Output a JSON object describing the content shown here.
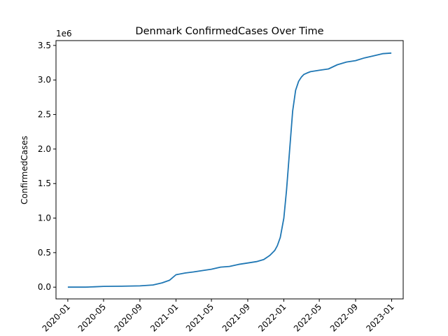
{
  "chart_data": {
    "type": "line",
    "title": "Denmark  ConfirmedCases Over Time",
    "xlabel": "",
    "ylabel": "ConfirmedCases",
    "y_offset_label": "1e6",
    "grid": false,
    "legend": "none",
    "line_color": "#1f77b4",
    "xlim": [
      "2019-11-22",
      "2023-02-09"
    ],
    "ylim": [
      -0.17,
      3.57
    ],
    "x_ticks": [
      {
        "date": "2020-01-01",
        "label": "2020-01"
      },
      {
        "date": "2020-05-01",
        "label": "2020-05"
      },
      {
        "date": "2020-09-01",
        "label": "2020-09"
      },
      {
        "date": "2021-01-01",
        "label": "2021-01"
      },
      {
        "date": "2021-05-01",
        "label": "2021-05"
      },
      {
        "date": "2021-09-01",
        "label": "2021-09"
      },
      {
        "date": "2022-01-01",
        "label": "2022-01"
      },
      {
        "date": "2022-05-01",
        "label": "2022-05"
      },
      {
        "date": "2022-09-01",
        "label": "2022-09"
      },
      {
        "date": "2023-01-01",
        "label": "2023-01"
      }
    ],
    "y_ticks": [
      {
        "value": 0.0,
        "label": "0.0"
      },
      {
        "value": 0.5,
        "label": "0.5"
      },
      {
        "value": 1.0,
        "label": "1.0"
      },
      {
        "value": 1.5,
        "label": "1.5"
      },
      {
        "value": 2.0,
        "label": "2.0"
      },
      {
        "value": 2.5,
        "label": "2.5"
      },
      {
        "value": 3.0,
        "label": "3.0"
      },
      {
        "value": 3.5,
        "label": "3.5"
      }
    ],
    "series": [
      {
        "x": [
          "2020-01-01",
          "2020-03-01",
          "2020-04-01",
          "2020-05-01",
          "2020-07-01",
          "2020-09-01",
          "2020-10-15",
          "2020-11-15",
          "2020-12-10",
          "2021-01-01",
          "2021-02-01",
          "2021-03-01",
          "2021-04-01",
          "2021-05-01",
          "2021-06-01",
          "2021-07-01",
          "2021-08-01",
          "2021-09-01",
          "2021-10-01",
          "2021-10-25",
          "2021-11-15",
          "2021-12-01",
          "2021-12-10",
          "2021-12-20",
          "2022-01-01",
          "2022-01-10",
          "2022-01-20",
          "2022-01-31",
          "2022-02-10",
          "2022-02-20",
          "2022-03-01",
          "2022-03-10",
          "2022-03-20",
          "2022-04-01",
          "2022-05-01",
          "2022-06-01",
          "2022-07-01",
          "2022-08-01",
          "2022-09-01",
          "2022-10-01",
          "2022-11-01",
          "2022-12-01",
          "2022-12-31"
        ],
        "y": [
          0.0,
          0.0,
          0.005,
          0.011,
          0.013,
          0.019,
          0.032,
          0.062,
          0.1,
          0.18,
          0.205,
          0.22,
          0.24,
          0.26,
          0.29,
          0.3,
          0.33,
          0.35,
          0.37,
          0.4,
          0.46,
          0.53,
          0.6,
          0.72,
          1.0,
          1.4,
          1.95,
          2.55,
          2.85,
          2.98,
          3.04,
          3.08,
          3.1,
          3.12,
          3.14,
          3.16,
          3.22,
          3.26,
          3.28,
          3.32,
          3.35,
          3.38,
          3.39
        ]
      }
    ]
  }
}
